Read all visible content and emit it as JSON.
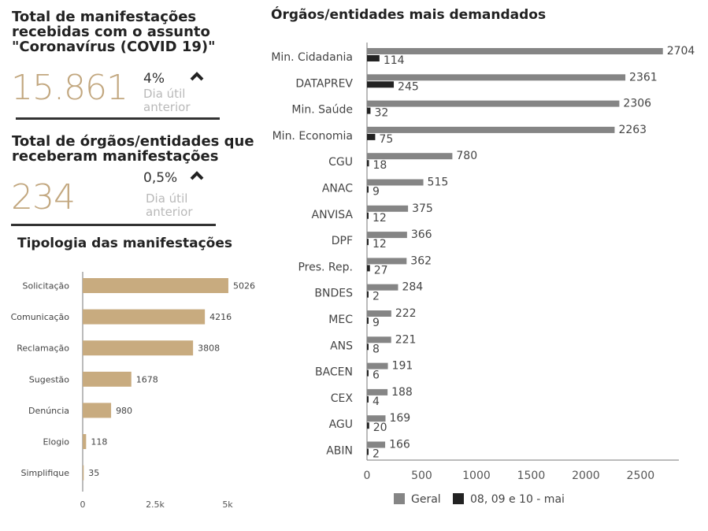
{
  "kpi1": {
    "title_lines": [
      "Total de manifestações",
      "recebidas com o assunto",
      "\"Coronavírus (COVID 19)\""
    ],
    "value": "15.861",
    "pct": "4%",
    "sub_lines": [
      "Dia útil",
      "anterior"
    ],
    "trend_icon": "chevron-up-icon"
  },
  "kpi2": {
    "title_lines": [
      "Total de órgãos/entidades que",
      "receberam manifestações"
    ],
    "value": "234",
    "pct": "0,5%",
    "sub_lines": [
      "Dia útil",
      "anterior"
    ],
    "trend_icon": "chevron-up-icon"
  },
  "colors": {
    "tan": "#c8ab7f",
    "gray": "#858585",
    "dark": "#222222",
    "kpi_value": "#c2a77f"
  },
  "chart_data": [
    {
      "type": "bar",
      "orientation": "horizontal",
      "title": "Tipologia das manifestações",
      "categories": [
        "Solicitação",
        "Comunicação",
        "Reclamação",
        "Sugestão",
        "Denúncia",
        "Elogio",
        "Simplifique"
      ],
      "values": [
        5026,
        4216,
        3808,
        1678,
        980,
        118,
        35
      ],
      "value_labels": [
        "5026",
        "4216",
        "3808",
        "1678",
        "980",
        "118",
        "35"
      ],
      "xlim": [
        0,
        5000
      ],
      "xticks": [
        0,
        2500,
        5000
      ],
      "xtick_labels": [
        "0",
        "2.5k",
        "5k"
      ],
      "grid": false
    },
    {
      "type": "bar",
      "orientation": "horizontal",
      "title": "Órgãos/entidades mais demandados",
      "categories": [
        "Min. Cidadania",
        "DATAPREV",
        "Min. Saúde",
        "Min. Economia",
        "CGU",
        "ANAC",
        "ANVISA",
        "DPF",
        "Pres. Rep.",
        "BNDES",
        "MEC",
        "ANS",
        "BACEN",
        "CEX",
        "AGU",
        "ABIN"
      ],
      "series": [
        {
          "name": "Geral",
          "values": [
            2704,
            2361,
            2306,
            2263,
            780,
            515,
            375,
            366,
            362,
            284,
            222,
            221,
            191,
            188,
            169,
            166
          ],
          "labels": [
            "2704",
            "2361",
            "2306",
            "2263",
            "780",
            "515",
            "375",
            "366",
            "362",
            "284",
            "222",
            "221",
            "191",
            "188",
            "169",
            "166"
          ]
        },
        {
          "name": "08, 09 e 10 - mai",
          "values": [
            114,
            245,
            32,
            75,
            18,
            9,
            12,
            12,
            27,
            2,
            9,
            8,
            6,
            4,
            20,
            2
          ],
          "labels": [
            "114",
            "245",
            "32",
            "75",
            "18",
            "9",
            "12",
            "12",
            "27",
            "2",
            "9",
            "8",
            "6",
            "4",
            "20",
            "2"
          ]
        }
      ],
      "xlim": [
        0,
        2850
      ],
      "xticks": [
        0,
        500,
        1000,
        1500,
        2000,
        2500
      ],
      "xtick_labels": [
        "0",
        "500",
        "1000",
        "1500",
        "2000",
        "2500"
      ],
      "legend": [
        "Geral",
        "08, 09 e 10 - mai"
      ],
      "legend_position": "bottom",
      "grid": false
    }
  ]
}
